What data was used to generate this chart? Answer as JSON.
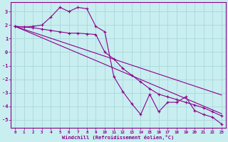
{
  "xlabel": "Windchill (Refroidissement éolien,°C)",
  "background_color": "#c8eef0",
  "line_color": "#8b008b",
  "grid_color": "#a8d8dc",
  "x_hours": [
    0,
    1,
    2,
    3,
    4,
    5,
    6,
    7,
    8,
    9,
    10,
    11,
    12,
    13,
    14,
    15,
    16,
    17,
    18,
    19,
    20,
    21,
    22,
    23
  ],
  "windchill": [
    1.9,
    1.85,
    1.9,
    2.0,
    2.6,
    3.3,
    3.0,
    3.3,
    3.2,
    1.9,
    1.5,
    -1.8,
    -2.9,
    -3.8,
    -4.6,
    -3.1,
    -4.4,
    -3.7,
    -3.7,
    -3.3,
    -4.3,
    -4.6,
    -4.8,
    -5.3
  ],
  "temp": [
    1.9,
    1.85,
    1.8,
    1.7,
    1.6,
    1.5,
    1.4,
    1.4,
    1.35,
    1.3,
    0.0,
    -0.5,
    -1.2,
    -1.7,
    -2.2,
    -2.7,
    -3.1,
    -3.3,
    -3.5,
    -3.7,
    -3.9,
    -4.1,
    -4.4,
    -4.7
  ],
  "regression1": [
    1.9,
    1.68,
    1.46,
    1.24,
    1.02,
    0.8,
    0.58,
    0.36,
    0.14,
    -0.08,
    -0.3,
    -0.52,
    -0.74,
    -0.96,
    -1.18,
    -1.4,
    -1.62,
    -1.84,
    -2.06,
    -2.28,
    -2.5,
    -2.72,
    -2.94,
    -3.16
  ],
  "regression2": [
    1.9,
    1.62,
    1.34,
    1.06,
    0.78,
    0.5,
    0.22,
    -0.06,
    -0.34,
    -0.62,
    -0.9,
    -1.18,
    -1.46,
    -1.74,
    -2.02,
    -2.3,
    -2.58,
    -2.86,
    -3.14,
    -3.42,
    -3.7,
    -3.98,
    -4.26,
    -4.54
  ],
  "ylim": [
    -5.6,
    3.7
  ],
  "yticks": [
    3,
    2,
    1,
    0,
    -1,
    -2,
    -3,
    -4,
    -5
  ],
  "xlim": [
    -0.5,
    23.5
  ],
  "xticks": [
    0,
    1,
    2,
    3,
    4,
    5,
    6,
    7,
    8,
    9,
    10,
    11,
    12,
    13,
    14,
    15,
    16,
    17,
    18,
    19,
    20,
    21,
    22,
    23
  ]
}
